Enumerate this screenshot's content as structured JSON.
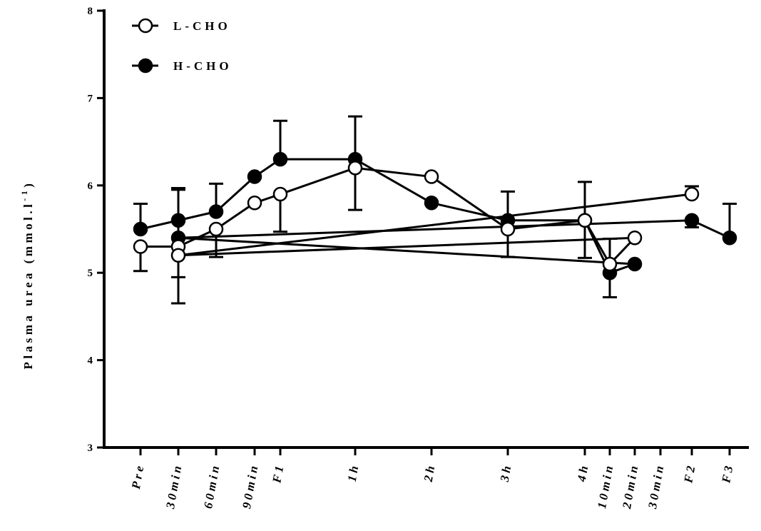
{
  "chart_data": {
    "type": "line",
    "ylabel": "Plasma urea (mmol.l",
    "ylabel_superscript": "-1",
    "ylabel_suffix": ")",
    "xlabel": "",
    "ylim": [
      3,
      8
    ],
    "yticks": [
      "3",
      "4",
      "5",
      "6",
      "7",
      "8"
    ],
    "grid": false,
    "legend_position": "top-left",
    "categories": [
      "Pre",
      "30min",
      "60min",
      "90min",
      "F1",
      "1h",
      "2h",
      "3h",
      "4h",
      "10min",
      "20min",
      "30min",
      "F2",
      "F3"
    ],
    "series": [
      {
        "name": "L-CHO",
        "marker": "open-circle",
        "color": "#000000",
        "points": [
          {
            "x": "Pre",
            "y": 5.3,
            "err_low": 5.02
          },
          {
            "x": "30min",
            "y": 5.3,
            "err_low": 4.95
          },
          {
            "x": "60min",
            "y": 5.5,
            "err_low": 5.18
          },
          {
            "x": "90min",
            "y": 5.8
          },
          {
            "x": "F1",
            "y": 5.9,
            "err_low": 5.47
          },
          {
            "x": "1h",
            "y": 6.2,
            "err_low": 5.72
          },
          {
            "x": "2h",
            "y": 6.1
          },
          {
            "x": "3h",
            "y": 5.5,
            "err_low": 5.18
          },
          {
            "x": "4h",
            "y": 5.6,
            "err_low": 5.17
          },
          {
            "x": "10min",
            "y": 5.1,
            "err_low": 4.72
          },
          {
            "x": "20min",
            "y": 5.4
          },
          {
            "x": "30min",
            "y": 5.2,
            "err_low": 4.65
          },
          {
            "x": "F2",
            "y": 5.9,
            "err_high": 5.99
          }
        ]
      },
      {
        "name": "H-CHO",
        "marker": "filled-circle",
        "color": "#000000",
        "points": [
          {
            "x": "Pre",
            "y": 5.5,
            "err_high": 5.79
          },
          {
            "x": "30min",
            "y": 5.6,
            "err_high": 5.97
          },
          {
            "x": "60min",
            "y": 5.7,
            "err_high": 6.02
          },
          {
            "x": "90min",
            "y": 6.1
          },
          {
            "x": "F1",
            "y": 6.3,
            "err_high": 6.74
          },
          {
            "x": "1h",
            "y": 6.3,
            "err_high": 6.79
          },
          {
            "x": "2h",
            "y": 5.8
          },
          {
            "x": "3h",
            "y": 5.6,
            "err_high": 5.93
          },
          {
            "x": "4h",
            "y": 5.6,
            "err_high": 6.04
          },
          {
            "x": "10min",
            "y": 5.0,
            "err_high": 5.39
          },
          {
            "x": "20min",
            "y": 5.1
          },
          {
            "x": "30min",
            "y": 5.4,
            "err_high": 5.95
          },
          {
            "x": "F2",
            "y": 5.6,
            "err_low": 5.52
          },
          {
            "x": "F3",
            "y": 5.4,
            "err_high": 5.79
          }
        ]
      }
    ]
  }
}
